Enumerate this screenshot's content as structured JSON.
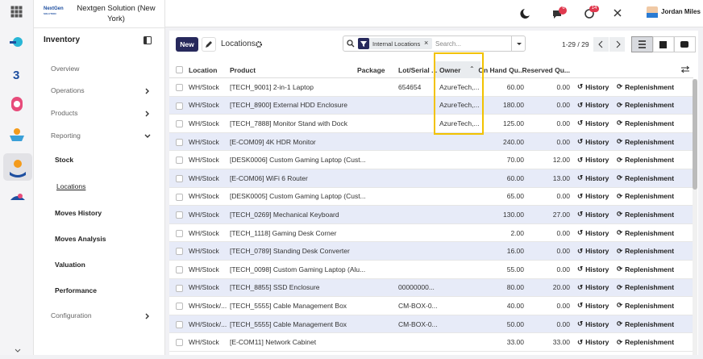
{
  "topbar": {
    "logo": "NextGen",
    "logo_sub": "SOLUTION",
    "company": "Nextgen Solution (New York)",
    "badges": [
      "6",
      "14"
    ],
    "user": "Jordan Miles"
  },
  "sidebar": {
    "title": "Inventory",
    "items": [
      {
        "label": "Overview",
        "level": 1
      },
      {
        "label": "Operations",
        "level": 1,
        "chevron": "right"
      },
      {
        "label": "Products",
        "level": 1,
        "chevron": "right"
      },
      {
        "label": "Reporting",
        "level": 1,
        "chevron": "down"
      },
      {
        "label": "Stock",
        "level": 2
      },
      {
        "label": "Locations",
        "level": 2,
        "active": true
      },
      {
        "label": "Moves History",
        "level": 2
      },
      {
        "label": "Moves Analysis",
        "level": 2
      },
      {
        "label": "Valuation",
        "level": 2
      },
      {
        "label": "Performance",
        "level": 2
      },
      {
        "label": "Configuration",
        "level": 1,
        "chevron": "right"
      }
    ]
  },
  "control_panel": {
    "new": "New",
    "title": "Locations",
    "facet": "Internal Locations",
    "search_placeholder": "Search...",
    "pager": "1-29 / 29"
  },
  "table": {
    "columns": [
      "Location",
      "Product",
      "Package",
      "Lot/Serial ...",
      "Owner",
      "On Hand Qu...",
      "Reserved Qu..."
    ],
    "actions": [
      "History",
      "Replenishment"
    ],
    "rows": [
      [
        "WH/Stock",
        "[TECH_9001] 2-in-1 Laptop",
        null,
        "654654",
        "AzureTech,...",
        "60.00",
        "0.00"
      ],
      [
        "WH/Stock",
        "[TECH_8900] External HDD Enclosure",
        null,
        null,
        "AzureTech,...",
        "180.00",
        "0.00"
      ],
      [
        "WH/Stock",
        "[TECH_7888] Monitor Stand with Dock",
        null,
        null,
        "AzureTech,...",
        "125.00",
        "0.00"
      ],
      [
        "WH/Stock",
        "[E-COM09] 4K HDR Monitor",
        null,
        null,
        null,
        "240.00",
        "0.00"
      ],
      [
        "WH/Stock",
        "[DESK0006] Custom Gaming Laptop (Cust...",
        null,
        null,
        null,
        "70.00",
        "12.00"
      ],
      [
        "WH/Stock",
        "[E-COM06] WiFi 6 Router",
        null,
        null,
        null,
        "60.00",
        "13.00"
      ],
      [
        "WH/Stock",
        "[DESK0005] Custom Gaming Laptop (Cust...",
        null,
        null,
        null,
        "65.00",
        "0.00"
      ],
      [
        "WH/Stock",
        "[TECH_0269] Mechanical Keyboard",
        null,
        null,
        null,
        "130.00",
        "27.00"
      ],
      [
        "WH/Stock",
        "[TECH_1118] Gaming Desk Corner",
        null,
        null,
        null,
        "2.00",
        "0.00"
      ],
      [
        "WH/Stock",
        "[TECH_0789] Standing Desk Converter",
        null,
        null,
        null,
        "16.00",
        "0.00"
      ],
      [
        "WH/Stock",
        "[TECH_0098] Custom Gaming Laptop (Alu...",
        null,
        null,
        null,
        "55.00",
        "0.00"
      ],
      [
        "WH/Stock",
        "[TECH_8855] SSD Enclosure",
        null,
        "00000000...",
        null,
        "80.00",
        "20.00"
      ],
      [
        "WH/Stock/...",
        "[TECH_5555] Cable Management Box",
        null,
        "CM-BOX-0...",
        null,
        "40.00",
        "0.00"
      ],
      [
        "WH/Stock/...",
        "[TECH_5555] Cable Management Box",
        null,
        "CM-BOX-0...",
        null,
        "50.00",
        "0.00"
      ],
      [
        "WH/Stock",
        "[E-COM11] Network Cabinet",
        null,
        null,
        null,
        "33.00",
        "33.00"
      ]
    ]
  }
}
